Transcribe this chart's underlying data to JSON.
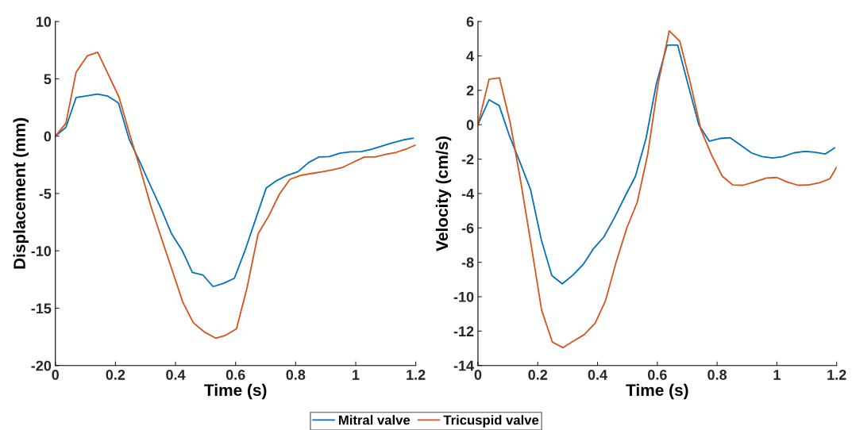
{
  "chart_data": [
    {
      "type": "line",
      "xlabel": "Time (s)",
      "ylabel": "Displacement (mm)",
      "xlim": [
        0,
        1.2
      ],
      "xticks": [
        0,
        0.2,
        0.4,
        0.6,
        0.8,
        1,
        1.2
      ],
      "ylim": [
        -20,
        10
      ],
      "yticks": [
        -20,
        -15,
        -10,
        -5,
        0,
        5,
        10
      ],
      "grid": false,
      "legend": "bottom",
      "series": [
        {
          "name": "Mitral valve",
          "color": "#0072bd",
          "x": [
            0,
            0.035,
            0.069,
            0.104,
            0.14,
            0.175,
            0.21,
            0.246,
            0.281,
            0.316,
            0.352,
            0.387,
            0.422,
            0.456,
            0.491,
            0.525,
            0.56,
            0.596,
            0.631,
            0.666,
            0.702,
            0.737,
            0.772,
            0.808,
            0.843,
            0.877,
            0.912,
            0.947,
            0.983,
            1.018,
            1.053,
            1.089,
            1.124,
            1.159,
            1.191
          ],
          "values": [
            0,
            0.77,
            3.37,
            3.51,
            3.67,
            3.49,
            2.89,
            -0.3,
            -2.23,
            -4.28,
            -6.33,
            -8.52,
            -9.95,
            -11.89,
            -12.1,
            -13.12,
            -12.83,
            -12.39,
            -10.0,
            -7.3,
            -4.53,
            -3.87,
            -3.42,
            -3.1,
            -2.3,
            -1.82,
            -1.78,
            -1.48,
            -1.37,
            -1.35,
            -1.14,
            -0.84,
            -0.57,
            -0.32,
            -0.18
          ]
        },
        {
          "name": "Tricuspid valve",
          "color": "#d95319",
          "x": [
            0,
            0.035,
            0.069,
            0.106,
            0.141,
            0.177,
            0.212,
            0.247,
            0.283,
            0.318,
            0.353,
            0.389,
            0.424,
            0.459,
            0.497,
            0.534,
            0.567,
            0.603,
            0.638,
            0.675,
            0.71,
            0.746,
            0.781,
            0.816,
            0.852,
            0.887,
            0.922,
            0.958,
            0.993,
            1.029,
            1.064,
            1.099,
            1.135,
            1.17,
            1.2
          ],
          "values": [
            0,
            1.12,
            5.58,
            7.0,
            7.31,
            5.33,
            3.4,
            0.2,
            -2.9,
            -6.1,
            -8.9,
            -11.7,
            -14.46,
            -16.26,
            -17.09,
            -17.62,
            -17.36,
            -16.81,
            -13.24,
            -8.52,
            -6.97,
            -5.06,
            -3.76,
            -3.42,
            -3.26,
            -3.12,
            -2.94,
            -2.71,
            -2.26,
            -1.82,
            -1.82,
            -1.59,
            -1.41,
            -1.1,
            -0.77
          ]
        }
      ]
    },
    {
      "type": "line",
      "xlabel": "Time (s)",
      "ylabel": "Velocity (cm/s)",
      "xlim": [
        0,
        1.2
      ],
      "xticks": [
        0,
        0.2,
        0.4,
        0.6,
        0.8,
        1,
        1.2
      ],
      "ylim": [
        -14,
        6
      ],
      "yticks": [
        -14,
        -12,
        -10,
        -8,
        -6,
        -4,
        -2,
        0,
        2,
        4,
        6
      ],
      "grid": false,
      "legend": false,
      "series": [
        {
          "color": "#0072bd",
          "x": [
            0,
            0.037,
            0.071,
            0.106,
            0.141,
            0.176,
            0.212,
            0.247,
            0.282,
            0.318,
            0.353,
            0.386,
            0.421,
            0.456,
            0.491,
            0.527,
            0.562,
            0.597,
            0.633,
            0.668,
            0.703,
            0.739,
            0.774,
            0.809,
            0.844,
            0.88,
            0.915,
            0.95,
            0.986,
            1.021,
            1.056,
            1.092,
            1.127,
            1.162,
            1.193
          ],
          "values": [
            0,
            1.45,
            1.11,
            -0.68,
            -2.2,
            -3.78,
            -6.7,
            -8.77,
            -9.25,
            -8.74,
            -8.1,
            -7.22,
            -6.53,
            -5.43,
            -4.2,
            -2.99,
            -0.82,
            2.4,
            4.63,
            4.63,
            2.33,
            -0.02,
            -0.96,
            -0.8,
            -0.76,
            -1.2,
            -1.64,
            -1.85,
            -1.93,
            -1.85,
            -1.64,
            -1.55,
            -1.6,
            -1.7,
            -1.35
          ]
        },
        {
          "color": "#d95319",
          "x": [
            0,
            0.037,
            0.072,
            0.108,
            0.143,
            0.178,
            0.213,
            0.249,
            0.284,
            0.319,
            0.355,
            0.392,
            0.427,
            0.462,
            0.498,
            0.533,
            0.568,
            0.603,
            0.64,
            0.675,
            0.711,
            0.746,
            0.781,
            0.817,
            0.852,
            0.887,
            0.922,
            0.965,
            1.0,
            1.036,
            1.071,
            1.106,
            1.142,
            1.177,
            1.2
          ],
          "values": [
            0,
            2.64,
            2.72,
            0.1,
            -3.3,
            -7.0,
            -10.79,
            -12.64,
            -12.96,
            -12.58,
            -12.21,
            -11.54,
            -10.21,
            -8.0,
            -6.0,
            -4.5,
            -1.7,
            2.4,
            5.46,
            4.86,
            2.4,
            -0.3,
            -1.74,
            -2.99,
            -3.5,
            -3.52,
            -3.34,
            -3.1,
            -3.07,
            -3.34,
            -3.52,
            -3.5,
            -3.38,
            -3.15,
            -2.47
          ]
        }
      ]
    }
  ]
}
